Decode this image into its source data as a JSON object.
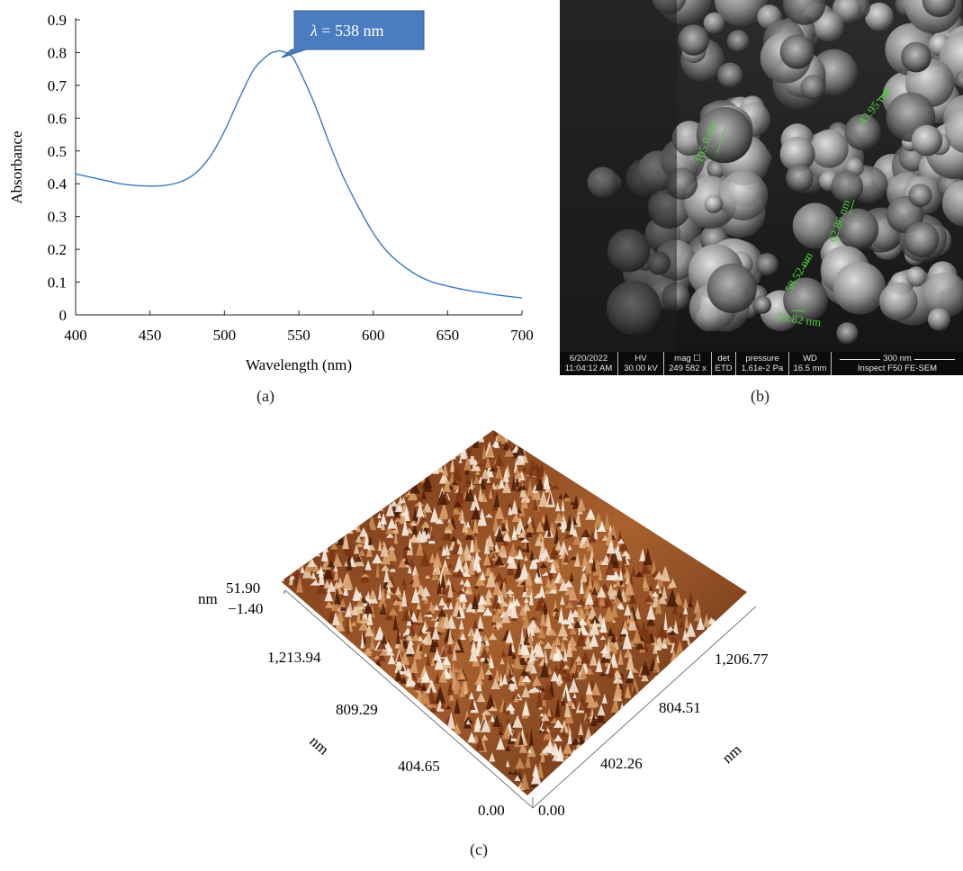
{
  "panel_a": {
    "caption": "(a)",
    "callout": {
      "symbol": "λ",
      "text": " = 538 nm",
      "fill": "#4a7dbf"
    },
    "chart_data": {
      "type": "line",
      "xlabel": "Wavelength (nm)",
      "ylabel": "Absorbance",
      "xlim": [
        400,
        700
      ],
      "ylim": [
        0,
        0.9
      ],
      "xticks": [
        400,
        450,
        500,
        550,
        600,
        650,
        700
      ],
      "yticks": [
        0,
        0.1,
        0.2,
        0.3,
        0.4,
        0.5,
        0.6,
        0.7,
        0.8,
        0.9
      ],
      "ytick_labels": [
        "0",
        "0.1",
        "0.2",
        "0.3",
        "0.4",
        "0.5",
        "0.6",
        "0.7",
        "0.8",
        "0.9"
      ],
      "grid": false,
      "color": "#3a78c2",
      "series": [
        {
          "x": [
            400,
            410,
            420,
            430,
            440,
            450,
            460,
            470,
            480,
            490,
            500,
            510,
            520,
            530,
            535,
            538,
            545,
            550,
            560,
            570,
            580,
            590,
            600,
            610,
            620,
            630,
            640,
            650,
            660,
            670,
            680,
            690,
            700
          ],
          "y": [
            0.43,
            0.42,
            0.41,
            0.4,
            0.395,
            0.393,
            0.395,
            0.405,
            0.43,
            0.48,
            0.56,
            0.66,
            0.75,
            0.795,
            0.803,
            0.805,
            0.79,
            0.75,
            0.65,
            0.53,
            0.42,
            0.33,
            0.25,
            0.19,
            0.15,
            0.12,
            0.1,
            0.088,
            0.078,
            0.07,
            0.063,
            0.057,
            0.052
          ]
        }
      ]
    }
  },
  "panel_b": {
    "caption": "(b)",
    "measurements": [
      "105.0 nm",
      "43.95 nm",
      "62.86 nm",
      "58.52 nm",
      "53.82 nm"
    ],
    "measure_color": "#4fcf3a",
    "info_bar": {
      "date": "6/20/2022",
      "time": "11:04:12 AM",
      "hv_label": "HV",
      "hv": "30.00 kV",
      "mag_label": "mag ☐",
      "mag": "249 582 x",
      "det_label": "det",
      "det": "ETD",
      "pressure_label": "pressure",
      "pressure": "1.61e-2 Pa",
      "wd_label": "WD",
      "wd": "16.5 mm",
      "scale_bar": "300 nm",
      "instrument": "Inspect F50 FE-SEM"
    }
  },
  "panel_c": {
    "caption": "(c)",
    "z_unit": "nm",
    "z_max": "51.90",
    "z_min": "−1.40",
    "left_axis_ticks": [
      "1,213.94",
      "809.29",
      "404.65",
      "0.00"
    ],
    "right_axis_ticks": [
      "1,206.77",
      "804.51",
      "402.26",
      "0.00"
    ],
    "left_axis_unit": "nm",
    "right_axis_unit": "nm"
  }
}
